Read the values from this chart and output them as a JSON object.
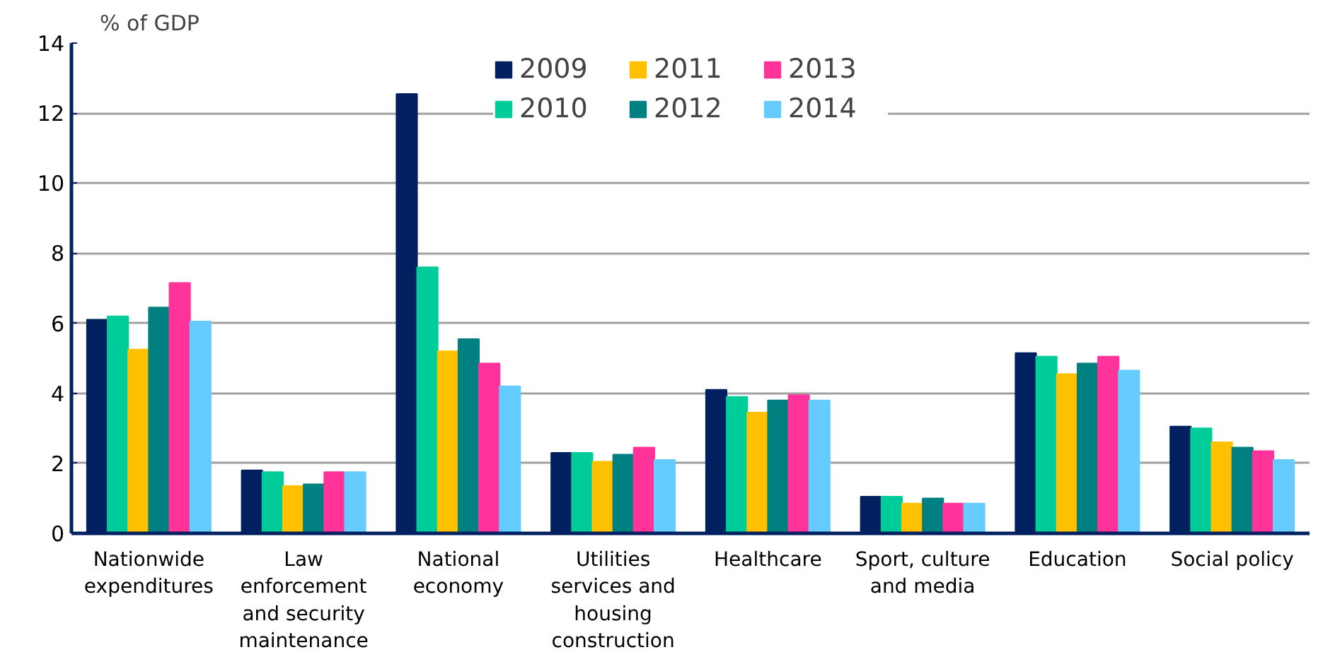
{
  "chart_data": {
    "type": "bar",
    "ylabel": "% of GDP",
    "categories": [
      "Nationwide\nexpenditures",
      "Law\nenforcement\nand security\nmaintenance",
      "National\neconomy",
      "Utilities\nservices and\nhousing\nconstruction",
      "Healthcare",
      "Sport, culture\nand media",
      "Education",
      "Social policy"
    ],
    "series": [
      {
        "name": "2009",
        "color": "#002060",
        "values": [
          6.1,
          1.8,
          12.55,
          2.3,
          4.1,
          1.05,
          5.15,
          3.05
        ]
      },
      {
        "name": "2010",
        "color": "#00cc99",
        "values": [
          6.2,
          1.75,
          7.6,
          2.3,
          3.9,
          1.05,
          5.05,
          3.0
        ]
      },
      {
        "name": "2011",
        "color": "#ffc000",
        "values": [
          5.25,
          1.35,
          5.2,
          2.05,
          3.45,
          0.85,
          4.55,
          2.6
        ]
      },
      {
        "name": "2012",
        "color": "#008080",
        "values": [
          6.45,
          1.4,
          5.55,
          2.25,
          3.8,
          1.0,
          4.85,
          2.45
        ]
      },
      {
        "name": "2013",
        "color": "#ff3399",
        "values": [
          7.15,
          1.75,
          4.85,
          2.45,
          3.95,
          0.85,
          5.05,
          2.35
        ]
      },
      {
        "name": "2014",
        "color": "#66ccff",
        "values": [
          6.05,
          1.75,
          4.2,
          2.1,
          3.8,
          0.85,
          4.65,
          2.1
        ]
      }
    ],
    "ylim": [
      0,
      14
    ],
    "yticks": [
      0,
      2,
      4,
      6,
      8,
      10,
      12,
      14
    ],
    "grid": "y",
    "legend": "top"
  }
}
